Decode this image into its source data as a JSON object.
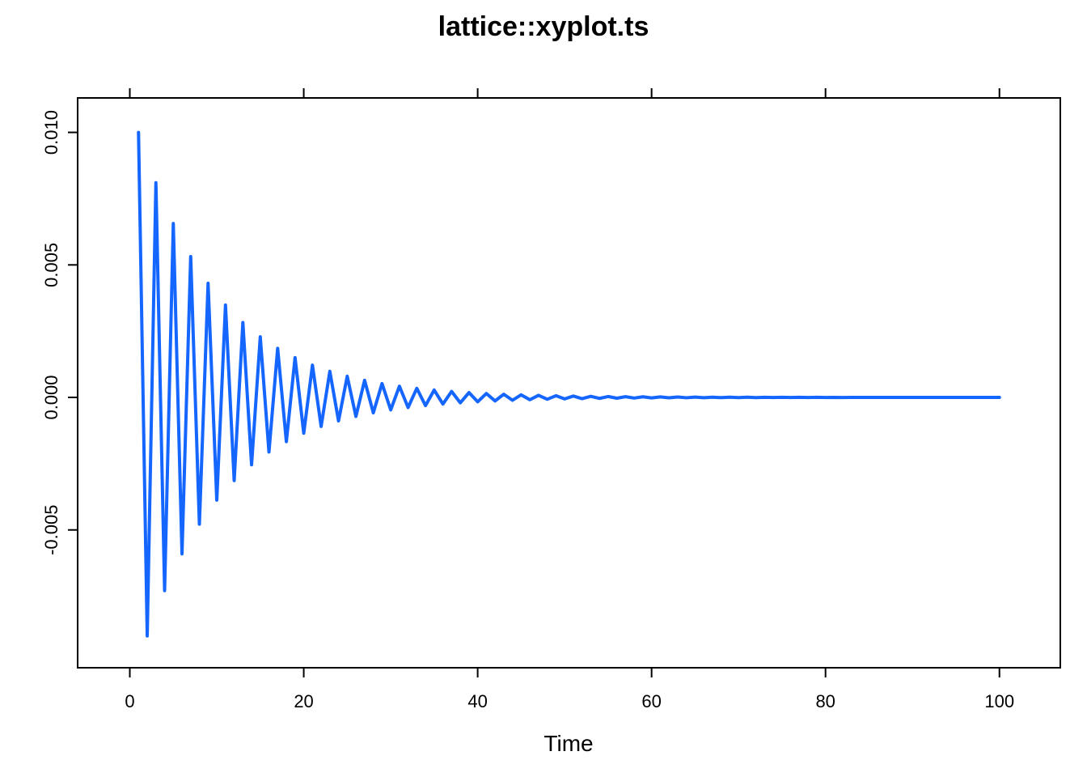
{
  "chart_data": {
    "type": "line",
    "title": "lattice::xyplot.ts",
    "xlabel": "Time",
    "ylabel": "",
    "xlim": [
      -6,
      107
    ],
    "ylim": [
      -0.0102,
      0.0113
    ],
    "x_ticks": [
      0,
      20,
      40,
      60,
      80,
      100
    ],
    "x_tick_labels": [
      "0",
      "20",
      "40",
      "60",
      "80",
      "100"
    ],
    "y_ticks": [
      -0.005,
      0.0,
      0.005,
      0.01
    ],
    "y_tick_labels": [
      "-0.005",
      "0.000",
      "0.005",
      "0.010"
    ],
    "grid": false,
    "legend": "none",
    "series_color": "#1565FF",
    "x": [
      1,
      2,
      3,
      4,
      5,
      6,
      7,
      8,
      9,
      10,
      11,
      12,
      13,
      14,
      15,
      16,
      17,
      18,
      19,
      20,
      21,
      22,
      23,
      24,
      25,
      26,
      27,
      28,
      29,
      30,
      31,
      32,
      33,
      34,
      35,
      36,
      37,
      38,
      39,
      40,
      41,
      42,
      43,
      44,
      45,
      46,
      47,
      48,
      49,
      50,
      51,
      52,
      53,
      54,
      55,
      56,
      57,
      58,
      59,
      60,
      61,
      62,
      63,
      64,
      65,
      66,
      67,
      68,
      69,
      70,
      71,
      72,
      73,
      74,
      75,
      76,
      77,
      78,
      79,
      80,
      81,
      82,
      83,
      84,
      85,
      86,
      87,
      88,
      89,
      90,
      91,
      92,
      93,
      94,
      95,
      96,
      97,
      98,
      99,
      100
    ],
    "series": [
      {
        "values": [
          0.01,
          -0.009,
          0.0081,
          -0.00729,
          0.006561,
          -0.0059049,
          0.00531441,
          -0.004782969,
          0.0043046721,
          -0.00387420489,
          0.003486784401,
          -0.0031381059609,
          0.00282429536481,
          -0.002541865828329,
          0.0022876792454961,
          -0.00205891132094649,
          0.001853020188851841,
          -0.0016677181699666567,
          0.0015009463529699913,
          -0.001350851717672992,
          0.001215766545905693,
          -0.0010941898913151235,
          0.0009847709021836113,
          -0.00088629381196525,
          0.0007976644307687251,
          -0.0007178979876918526,
          0.0006461081889226673,
          -0.0005814973700304006,
          0.0005233476330273605,
          -0.0004710128697246245,
          0.000423911582752162,
          -0.00038152042447694583,
          0.00034336838202925126,
          -0.0003090315438263261,
          0.0002781283894436935,
          -0.00025031555049932416,
          0.00022528399544939176,
          -0.0002027555959044526,
          0.00018248003631400733,
          -0.0001642320326826066,
          0.00014780882941434594,
          -0.00013302794647291133,
          0.0001197251518256202,
          -0.00010775263664305819,
          9.697737297875237e-05,
          -8.727963568087713e-05,
          7.855167211278942e-05,
          -7.069650490151048e-05,
          6.362685441135943e-05,
          -5.726416897022349e-05,
          5.153775207320114e-05,
          -4.6383976865881026e-05,
          4.174557917929292e-05,
          -3.7571021261363624e-05,
          3.381391913522726e-05,
          -3.043252722170454e-05,
          2.7389274499534083e-05,
          -2.4650347049580676e-05,
          2.2185312344622607e-05,
          -1.9966781110160346e-05,
          1.797010299914431e-05,
          -1.617309269922988e-05,
          1.4555783429306895e-05,
          -1.3100205086376204e-05,
          1.1790184577738584e-05,
          -1.0611166119964725e-05,
          9.550049507968253e-06,
          -8.595044557171427e-06,
          7.735540101454284e-06,
          -6.961986091308856e-06,
          6.265787482177971e-06,
          -5.639208733960174e-06,
          5.075287860564157e-06,
          -4.567759074507741e-06,
          4.110983167056967e-06,
          -3.69988485035127e-06,
          3.329896365316143e-06,
          -2.9969067287845286e-06,
          2.697216055906076e-06,
          -2.427494450315468e-06,
          2.1847450052839213e-06,
          -1.966270504755529e-06,
          1.7696434542799764e-06,
          -1.5926791088519788e-06,
          1.433411197966781e-06,
          -1.2900700781701029e-06,
          1.1610630703530925e-06,
          -1.0449567633177834e-06,
          9.40461086986005e-07,
          -8.464149782874045e-07,
          7.61773480458664e-07,
          -6.855961324127976e-07,
          6.170365191715178e-07,
          -5.55332867254366e-07,
          4.997995805289294e-07,
          -4.498196224760365e-07,
          4.048376602284329e-07,
          -3.6435389420558955e-07,
          3.279185047850306e-07,
          -2.951266543065276e-07
        ]
      }
    ]
  }
}
